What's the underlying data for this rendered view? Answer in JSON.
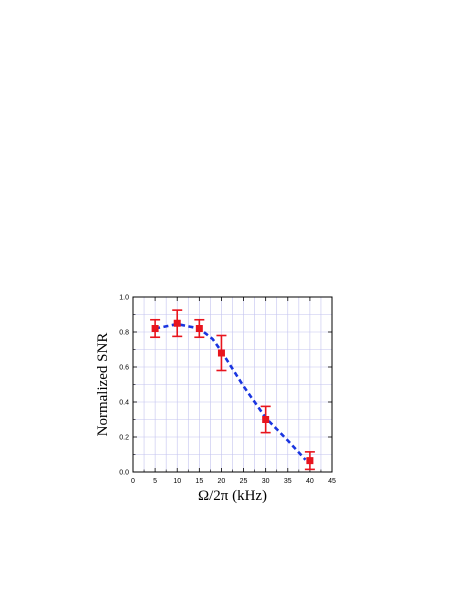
{
  "chart_data": {
    "type": "scatter",
    "title": "",
    "xlabel": "Ω/2π (kHz)",
    "ylabel": "Normalized SNR",
    "xlim": [
      0,
      45
    ],
    "ylim": [
      0,
      1.0
    ],
    "x_ticks": [
      "0",
      "5",
      "10",
      "15",
      "20",
      "25",
      "30",
      "35",
      "40",
      "45"
    ],
    "y_ticks": [
      "0.0",
      "0.2",
      "0.4",
      "0.6",
      "0.8",
      "1.0"
    ],
    "grid": true,
    "series": [
      {
        "style": "markers-with-error-bars",
        "color": "#e8141d",
        "x": [
          5,
          10,
          15,
          20,
          30,
          40
        ],
        "y": [
          0.82,
          0.85,
          0.82,
          0.68,
          0.3,
          0.065
        ],
        "yerr": [
          0.05,
          0.075,
          0.05,
          0.1,
          0.075,
          0.05
        ]
      },
      {
        "style": "dashed-line",
        "color": "#1a35e0",
        "x": [
          5,
          10,
          15,
          18,
          20,
          25,
          30,
          35,
          39
        ],
        "y": [
          0.82,
          0.845,
          0.82,
          0.76,
          0.69,
          0.49,
          0.31,
          0.18,
          0.07
        ]
      }
    ]
  }
}
